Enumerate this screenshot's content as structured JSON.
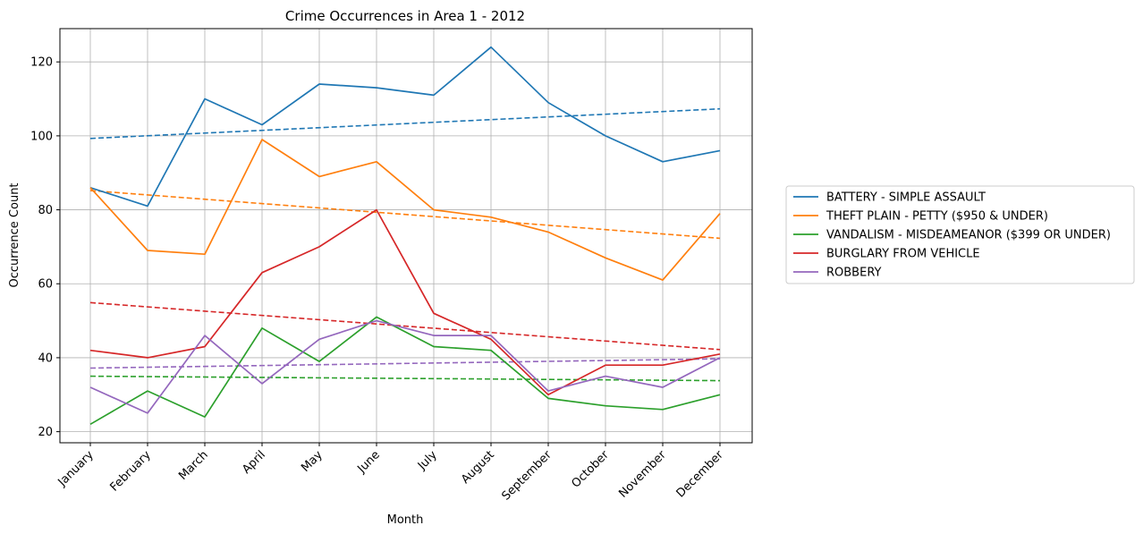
{
  "chart_data": {
    "type": "line",
    "title": "Crime Occurrences in Area 1 - 2012",
    "xlabel": "Month",
    "ylabel": "Occurrence Count",
    "ylim": [
      17,
      129
    ],
    "yticks": [
      20,
      40,
      60,
      80,
      100,
      120
    ],
    "grid": true,
    "legend_position": "outside-right",
    "categories": [
      "January",
      "February",
      "March",
      "April",
      "May",
      "June",
      "July",
      "August",
      "September",
      "October",
      "November",
      "December"
    ],
    "series": [
      {
        "name": "BATTERY - SIMPLE ASSAULT",
        "color": "#1f77b4",
        "values": [
          86,
          81,
          110,
          103,
          114,
          113,
          111,
          124,
          109,
          100,
          93,
          96
        ],
        "trend": [
          99.3,
          107.3
        ]
      },
      {
        "name": "THEFT PLAIN - PETTY ($950 & UNDER)",
        "color": "#ff7f0e",
        "values": [
          86,
          69,
          68,
          99,
          89,
          93,
          80,
          78,
          74,
          67,
          61,
          79
        ],
        "trend": [
          85.2,
          72.3
        ]
      },
      {
        "name": "VANDALISM - MISDEAMEANOR ($399 OR UNDER)",
        "color": "#2ca02c",
        "values": [
          22,
          31,
          24,
          48,
          39,
          51,
          43,
          42,
          29,
          27,
          26,
          30
        ],
        "trend": [
          35.0,
          33.8
        ]
      },
      {
        "name": "BURGLARY FROM VEHICLE",
        "color": "#d62728",
        "values": [
          42,
          40,
          43,
          63,
          70,
          80,
          52,
          45,
          30,
          38,
          38,
          41
        ],
        "trend": [
          54.9,
          42.2
        ]
      },
      {
        "name": "ROBBERY",
        "color": "#9467bd",
        "values": [
          32,
          25,
          46,
          33,
          45,
          50,
          46,
          46,
          31,
          35,
          32,
          40
        ],
        "trend": [
          37.2,
          39.7
        ]
      }
    ]
  }
}
